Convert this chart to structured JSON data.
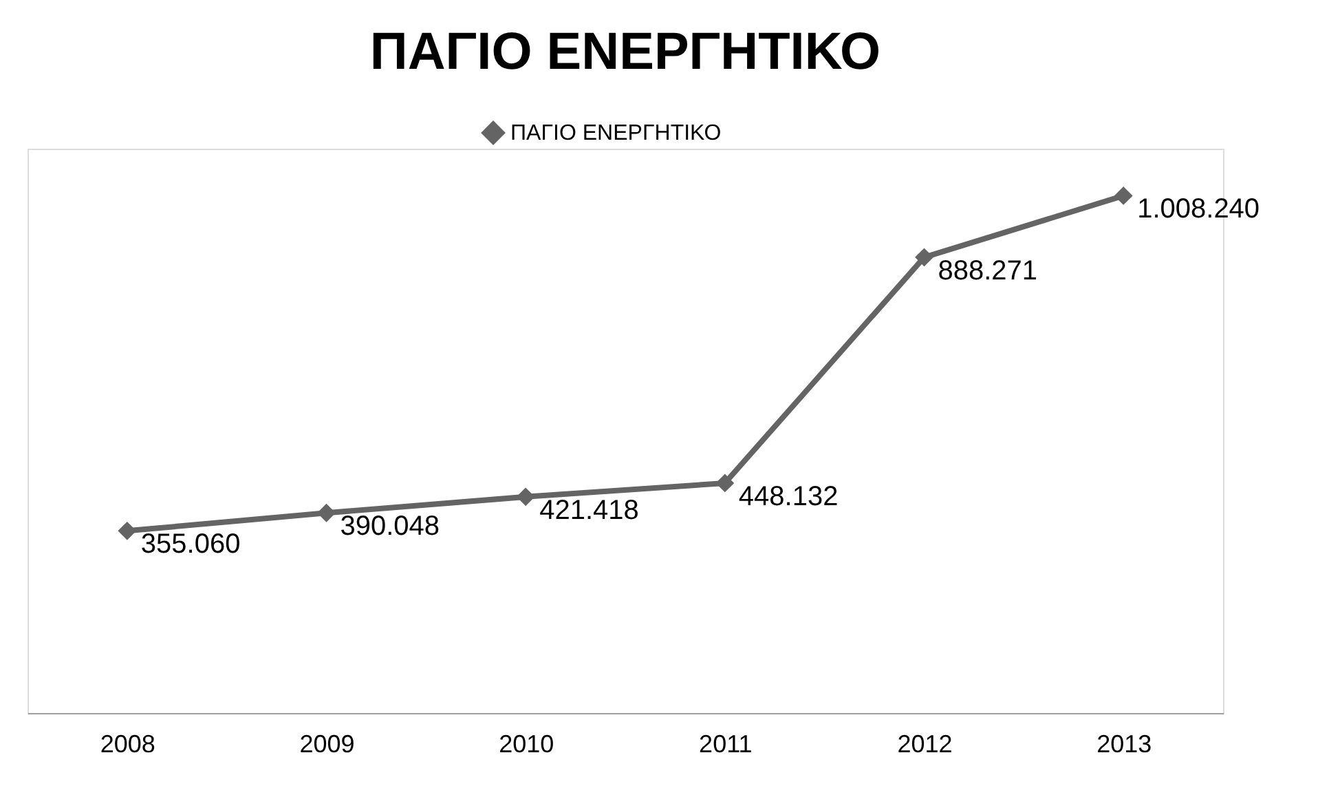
{
  "chart_data": {
    "type": "line",
    "title": "ΠΑΓΙΟ ΕΝΕΡΓΗΤΙΚΟ",
    "categories": [
      "2008",
      "2009",
      "2010",
      "2011",
      "2012",
      "2013"
    ],
    "series": [
      {
        "name": "ΠΑΓΙΟ ΕΝΕΡΓΗΤΙΚΟ",
        "color": "#646464",
        "values": [
          355060,
          390048,
          421418,
          448132,
          888271,
          1008240
        ],
        "value_labels": [
          "355.060",
          "390.048",
          "421.418",
          "448.132",
          "888.271",
          "1.008.240"
        ]
      }
    ],
    "marker": "diamond",
    "line_style": "solid",
    "legend": "top",
    "grid": false,
    "tick_labels": "x"
  }
}
